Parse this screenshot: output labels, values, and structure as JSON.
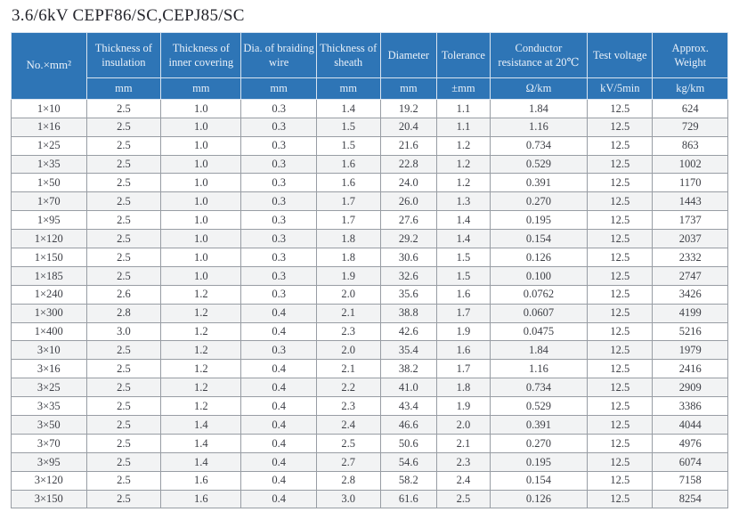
{
  "title": "3.6/6kV  CEPF86/SC,CEPJ85/SC",
  "colors": {
    "header_bg": "#2e75b6",
    "header_text": "#eaf1f9",
    "body_text": "#3e4047",
    "stripe_bg": "#f2f3f4",
    "grid_line": "#989da4"
  },
  "table": {
    "columns": [
      {
        "label": "No.×mm²",
        "unit": null
      },
      {
        "label": "Thickness of insulation",
        "unit": "mm"
      },
      {
        "label": "Thickness of inner covering",
        "unit": "mm"
      },
      {
        "label": "Dia. of braiding wire",
        "unit": "mm"
      },
      {
        "label": "Thickness of sheath",
        "unit": "mm"
      },
      {
        "label": "Diameter",
        "unit": "mm"
      },
      {
        "label": "Tolerance",
        "unit": "±mm"
      },
      {
        "label": "Conductor resistance at 20℃",
        "unit": "Ω/km"
      },
      {
        "label": "Test voltage",
        "unit": "kV/5min"
      },
      {
        "label": "Approx. Weight",
        "unit": "kg/km"
      }
    ],
    "rows": [
      [
        "1×10",
        "2.5",
        "1.0",
        "0.3",
        "1.4",
        "19.2",
        "1.1",
        "1.84",
        "12.5",
        "624"
      ],
      [
        "1×16",
        "2.5",
        "1.0",
        "0.3",
        "1.5",
        "20.4",
        "1.1",
        "1.16",
        "12.5",
        "729"
      ],
      [
        "1×25",
        "2.5",
        "1.0",
        "0.3",
        "1.5",
        "21.6",
        "1.2",
        "0.734",
        "12.5",
        "863"
      ],
      [
        "1×35",
        "2.5",
        "1.0",
        "0.3",
        "1.6",
        "22.8",
        "1.2",
        "0.529",
        "12.5",
        "1002"
      ],
      [
        "1×50",
        "2.5",
        "1.0",
        "0.3",
        "1.6",
        "24.0",
        "1.2",
        "0.391",
        "12.5",
        "1170"
      ],
      [
        "1×70",
        "2.5",
        "1.0",
        "0.3",
        "1.7",
        "26.0",
        "1.3",
        "0.270",
        "12.5",
        "1443"
      ],
      [
        "1×95",
        "2.5",
        "1.0",
        "0.3",
        "1.7",
        "27.6",
        "1.4",
        "0.195",
        "12.5",
        "1737"
      ],
      [
        "1×120",
        "2.5",
        "1.0",
        "0.3",
        "1.8",
        "29.2",
        "1.4",
        "0.154",
        "12.5",
        "2037"
      ],
      [
        "1×150",
        "2.5",
        "1.0",
        "0.3",
        "1.8",
        "30.6",
        "1.5",
        "0.126",
        "12.5",
        "2332"
      ],
      [
        "1×185",
        "2.5",
        "1.0",
        "0.3",
        "1.9",
        "32.6",
        "1.5",
        "0.100",
        "12.5",
        "2747"
      ],
      [
        "1×240",
        "2.6",
        "1.2",
        "0.3",
        "2.0",
        "35.6",
        "1.6",
        "0.0762",
        "12.5",
        "3426"
      ],
      [
        "1×300",
        "2.8",
        "1.2",
        "0.4",
        "2.1",
        "38.8",
        "1.7",
        "0.0607",
        "12.5",
        "4199"
      ],
      [
        "1×400",
        "3.0",
        "1.2",
        "0.4",
        "2.3",
        "42.6",
        "1.9",
        "0.0475",
        "12.5",
        "5216"
      ],
      [
        "3×10",
        "2.5",
        "1.2",
        "0.3",
        "2.0",
        "35.4",
        "1.6",
        "1.84",
        "12.5",
        "1979"
      ],
      [
        "3×16",
        "2.5",
        "1.2",
        "0.4",
        "2.1",
        "38.2",
        "1.7",
        "1.16",
        "12.5",
        "2416"
      ],
      [
        "3×25",
        "2.5",
        "1.2",
        "0.4",
        "2.2",
        "41.0",
        "1.8",
        "0.734",
        "12.5",
        "2909"
      ],
      [
        "3×35",
        "2.5",
        "1.2",
        "0.4",
        "2.3",
        "43.4",
        "1.9",
        "0.529",
        "12.5",
        "3386"
      ],
      [
        "3×50",
        "2.5",
        "1.4",
        "0.4",
        "2.4",
        "46.6",
        "2.0",
        "0.391",
        "12.5",
        "4044"
      ],
      [
        "3×70",
        "2.5",
        "1.4",
        "0.4",
        "2.5",
        "50.6",
        "2.1",
        "0.270",
        "12.5",
        "4976"
      ],
      [
        "3×95",
        "2.5",
        "1.4",
        "0.4",
        "2.7",
        "54.6",
        "2.3",
        "0.195",
        "12.5",
        "6074"
      ],
      [
        "3×120",
        "2.5",
        "1.6",
        "0.4",
        "2.8",
        "58.2",
        "2.4",
        "0.154",
        "12.5",
        "7158"
      ],
      [
        "3×150",
        "2.5",
        "1.6",
        "0.4",
        "3.0",
        "61.6",
        "2.5",
        "0.126",
        "12.5",
        "8254"
      ]
    ]
  }
}
